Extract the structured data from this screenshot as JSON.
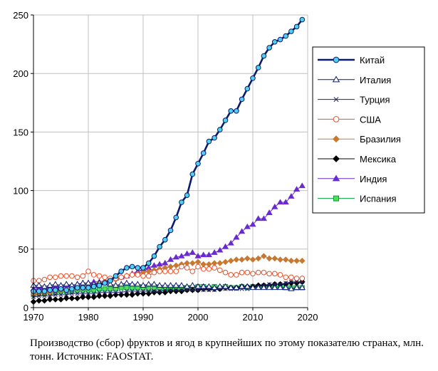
{
  "caption": "Производство (сбор) фруктов и ягод в крупнейших по этому показателю странах, млн. тонн. Источник: FAOSTAT.",
  "chart_data": {
    "type": "line",
    "xlim": [
      1970,
      2020
    ],
    "ylim": [
      0,
      250
    ],
    "x_ticks": [
      "1970",
      "1980",
      "1990",
      "2000",
      "2010",
      "2020"
    ],
    "y_ticks": [
      "0",
      "50",
      "100",
      "150",
      "200",
      "250"
    ],
    "grid": "horizontal",
    "legend_position": "right",
    "series": [
      {
        "name": "Китай",
        "color": "#0a1a6e",
        "marker": "circle",
        "marker_fill": "#4fd0ee",
        "line_width": 2.6,
        "x": [
          1970,
          1971,
          1972,
          1973,
          1974,
          1975,
          1976,
          1977,
          1978,
          1979,
          1980,
          1981,
          1982,
          1983,
          1984,
          1985,
          1986,
          1987,
          1988,
          1989,
          1990,
          1991,
          1992,
          1993,
          1994,
          1995,
          1996,
          1997,
          1998,
          1999,
          2000,
          2001,
          2002,
          2003,
          2004,
          2005,
          2006,
          2007,
          2008,
          2009,
          2010,
          2011,
          2012,
          2013,
          2014,
          2015,
          2016,
          2017,
          2018,
          2019
        ],
        "y": [
          14,
          14,
          14,
          15,
          15,
          16,
          15,
          16,
          17,
          17,
          17,
          18,
          19,
          21,
          23,
          27,
          31,
          34,
          35,
          34,
          34,
          38,
          44,
          52,
          58,
          66,
          77,
          90,
          96,
          114,
          123,
          132,
          142,
          145,
          152,
          160,
          168,
          168,
          178,
          187,
          196,
          205,
          215,
          222,
          227,
          229,
          232,
          236,
          240,
          246
        ]
      },
      {
        "name": "Италия",
        "color": "#0a1a6e",
        "marker": "triangle",
        "marker_fill": "#ffffff",
        "line_width": 1,
        "x": [
          1970,
          1971,
          1972,
          1973,
          1974,
          1975,
          1976,
          1977,
          1978,
          1979,
          1980,
          1981,
          1982,
          1983,
          1984,
          1985,
          1986,
          1987,
          1988,
          1989,
          1990,
          1991,
          1992,
          1993,
          1994,
          1995,
          1996,
          1997,
          1998,
          1999,
          2000,
          2001,
          2002,
          2003,
          2004,
          2005,
          2006,
          2007,
          2008,
          2009,
          2010,
          2011,
          2012,
          2013,
          2014,
          2015,
          2016,
          2017,
          2018,
          2019
        ],
        "y": [
          19,
          19,
          18,
          19,
          20,
          19,
          20,
          19,
          20,
          21,
          21,
          20,
          21,
          21,
          20,
          19,
          20,
          21,
          20,
          20,
          19,
          20,
          20,
          19,
          19,
          19,
          19,
          19,
          18,
          19,
          18,
          18,
          18,
          17,
          18,
          18,
          17,
          17,
          18,
          18,
          17,
          17,
          17,
          17,
          17,
          17,
          17,
          16,
          17,
          17
        ]
      },
      {
        "name": "Турция",
        "color": "#222266",
        "marker": "x",
        "marker_fill": "#222266",
        "line_width": 1,
        "x": [
          1970,
          1971,
          1972,
          1973,
          1974,
          1975,
          1976,
          1977,
          1978,
          1979,
          1980,
          1981,
          1982,
          1983,
          1984,
          1985,
          1986,
          1987,
          1988,
          1989,
          1990,
          1991,
          1992,
          1993,
          1994,
          1995,
          1996,
          1997,
          1998,
          1999,
          2000,
          2001,
          2002,
          2003,
          2004,
          2005,
          2006,
          2007,
          2008,
          2009,
          2010,
          2011,
          2012,
          2013,
          2014,
          2015,
          2016,
          2017,
          2018,
          2019
        ],
        "y": [
          9,
          10,
          10,
          10,
          11,
          11,
          11,
          12,
          12,
          12,
          12,
          12,
          13,
          13,
          13,
          13,
          13,
          14,
          14,
          14,
          14,
          14,
          14,
          14,
          15,
          15,
          15,
          15,
          15,
          15,
          15,
          15,
          15,
          15,
          16,
          16,
          16,
          16,
          16,
          16,
          17,
          18,
          19,
          20,
          20,
          20,
          21,
          22,
          22,
          22
        ]
      },
      {
        "name": "США",
        "color": "#e8502a",
        "marker": "circle",
        "marker_fill": "#ffffff",
        "line_width": 1,
        "x": [
          1970,
          1971,
          1972,
          1973,
          1974,
          1975,
          1976,
          1977,
          1978,
          1979,
          1980,
          1981,
          1982,
          1983,
          1984,
          1985,
          1986,
          1987,
          1988,
          1989,
          1990,
          1991,
          1992,
          1993,
          1994,
          1995,
          1996,
          1997,
          1998,
          1999,
          2000,
          2001,
          2002,
          2003,
          2004,
          2005,
          2006,
          2007,
          2008,
          2009,
          2010,
          2011,
          2012,
          2013,
          2014,
          2015,
          2016,
          2017,
          2018,
          2019
        ],
        "y": [
          23,
          23,
          24,
          26,
          26,
          27,
          27,
          27,
          26,
          27,
          31,
          28,
          27,
          26,
          25,
          25,
          26,
          27,
          28,
          28,
          27,
          27,
          30,
          31,
          31,
          31,
          31,
          35,
          34,
          31,
          35,
          33,
          33,
          34,
          32,
          30,
          28,
          28,
          30,
          30,
          29,
          30,
          30,
          29,
          29,
          28,
          26,
          26,
          25,
          25
        ]
      },
      {
        "name": "Бразилия",
        "color": "#c87830",
        "marker": "diamond",
        "marker_fill": "#c87830",
        "line_width": 1,
        "x": [
          1970,
          1971,
          1972,
          1973,
          1974,
          1975,
          1976,
          1977,
          1978,
          1979,
          1980,
          1981,
          1982,
          1983,
          1984,
          1985,
          1986,
          1987,
          1988,
          1989,
          1990,
          1991,
          1992,
          1993,
          1994,
          1995,
          1996,
          1997,
          1998,
          1999,
          2000,
          2001,
          2002,
          2003,
          2004,
          2005,
          2006,
          2007,
          2008,
          2009,
          2010,
          2011,
          2012,
          2013,
          2014,
          2015,
          2016,
          2017,
          2018,
          2019
        ],
        "y": [
          11,
          12,
          13,
          13,
          14,
          15,
          15,
          16,
          17,
          18,
          19,
          20,
          21,
          22,
          23,
          24,
          26,
          27,
          28,
          29,
          30,
          31,
          32,
          33,
          34,
          35,
          36,
          37,
          38,
          38,
          39,
          37,
          37,
          38,
          38,
          39,
          40,
          41,
          41,
          42,
          41,
          42,
          44,
          42,
          42,
          41,
          41,
          40,
          40,
          40
        ]
      },
      {
        "name": "Мексика",
        "color": "#000000",
        "marker": "diamond",
        "marker_fill": "#000000",
        "line_width": 1,
        "x": [
          1970,
          1971,
          1972,
          1973,
          1974,
          1975,
          1976,
          1977,
          1978,
          1979,
          1980,
          1981,
          1982,
          1983,
          1984,
          1985,
          1986,
          1987,
          1988,
          1989,
          1990,
          1991,
          1992,
          1993,
          1994,
          1995,
          1996,
          1997,
          1998,
          1999,
          2000,
          2001,
          2002,
          2003,
          2004,
          2005,
          2006,
          2007,
          2008,
          2009,
          2010,
          2011,
          2012,
          2013,
          2014,
          2015,
          2016,
          2017,
          2018,
          2019
        ],
        "y": [
          5,
          6,
          6,
          7,
          7,
          7,
          8,
          8,
          8,
          9,
          9,
          9,
          10,
          10,
          10,
          11,
          11,
          11,
          11,
          12,
          12,
          12,
          13,
          13,
          13,
          14,
          14,
          14,
          15,
          15,
          15,
          16,
          16,
          16,
          16,
          17,
          17,
          17,
          18,
          18,
          18,
          19,
          19,
          19,
          20,
          20,
          20,
          21,
          21,
          22
        ]
      },
      {
        "name": "Индия",
        "color": "#6a2ad0",
        "marker": "triangle",
        "marker_fill": "#6a2ad0",
        "line_width": 1,
        "x": [
          1970,
          1971,
          1972,
          1973,
          1974,
          1975,
          1976,
          1977,
          1978,
          1979,
          1980,
          1981,
          1982,
          1983,
          1984,
          1985,
          1986,
          1987,
          1988,
          1989,
          1990,
          1991,
          1992,
          1993,
          1994,
          1995,
          1996,
          1997,
          1998,
          1999,
          2000,
          2001,
          2002,
          2003,
          2004,
          2005,
          2006,
          2007,
          2008,
          2009,
          2010,
          2011,
          2012,
          2013,
          2014,
          2015,
          2016,
          2017,
          2018,
          2019
        ],
        "y": [
          16,
          17,
          17,
          18,
          18,
          18,
          19,
          19,
          20,
          21,
          21,
          22,
          22,
          23,
          24,
          25,
          26,
          27,
          29,
          31,
          33,
          34,
          36,
          37,
          38,
          41,
          43,
          44,
          46,
          47,
          44,
          45,
          45,
          47,
          49,
          52,
          55,
          60,
          65,
          69,
          71,
          76,
          76,
          81,
          86,
          90,
          90,
          95,
          101,
          104
        ]
      },
      {
        "name": "Испания",
        "color": "#00a040",
        "marker": "square",
        "marker_fill": "#55dd55",
        "line_width": 1,
        "x": [
          1970,
          1971,
          1972,
          1973,
          1974,
          1975,
          1976,
          1977,
          1978,
          1979,
          1980,
          1981,
          1982,
          1983,
          1984,
          1985,
          1986,
          1987,
          1988,
          1989,
          1990,
          1991,
          1992,
          1993,
          1994,
          1995,
          1996,
          1997,
          1998,
          1999,
          2000,
          2001,
          2002,
          2003,
          2004,
          2005,
          2006,
          2007,
          2008,
          2009,
          2010,
          2011,
          2012,
          2013,
          2014,
          2015,
          2016,
          2017,
          2018,
          2019
        ],
        "y": [
          11,
          12,
          12,
          13,
          13,
          14,
          14,
          14,
          15,
          15,
          15,
          15,
          16,
          16,
          16,
          16,
          17,
          17,
          17,
          17,
          17,
          16,
          16,
          17,
          16,
          16,
          17,
          17,
          17,
          17,
          18,
          18,
          17,
          18,
          17,
          18,
          17,
          17,
          18,
          17,
          18,
          18,
          18,
          18,
          18,
          18,
          17,
          17,
          17,
          17
        ]
      }
    ]
  }
}
